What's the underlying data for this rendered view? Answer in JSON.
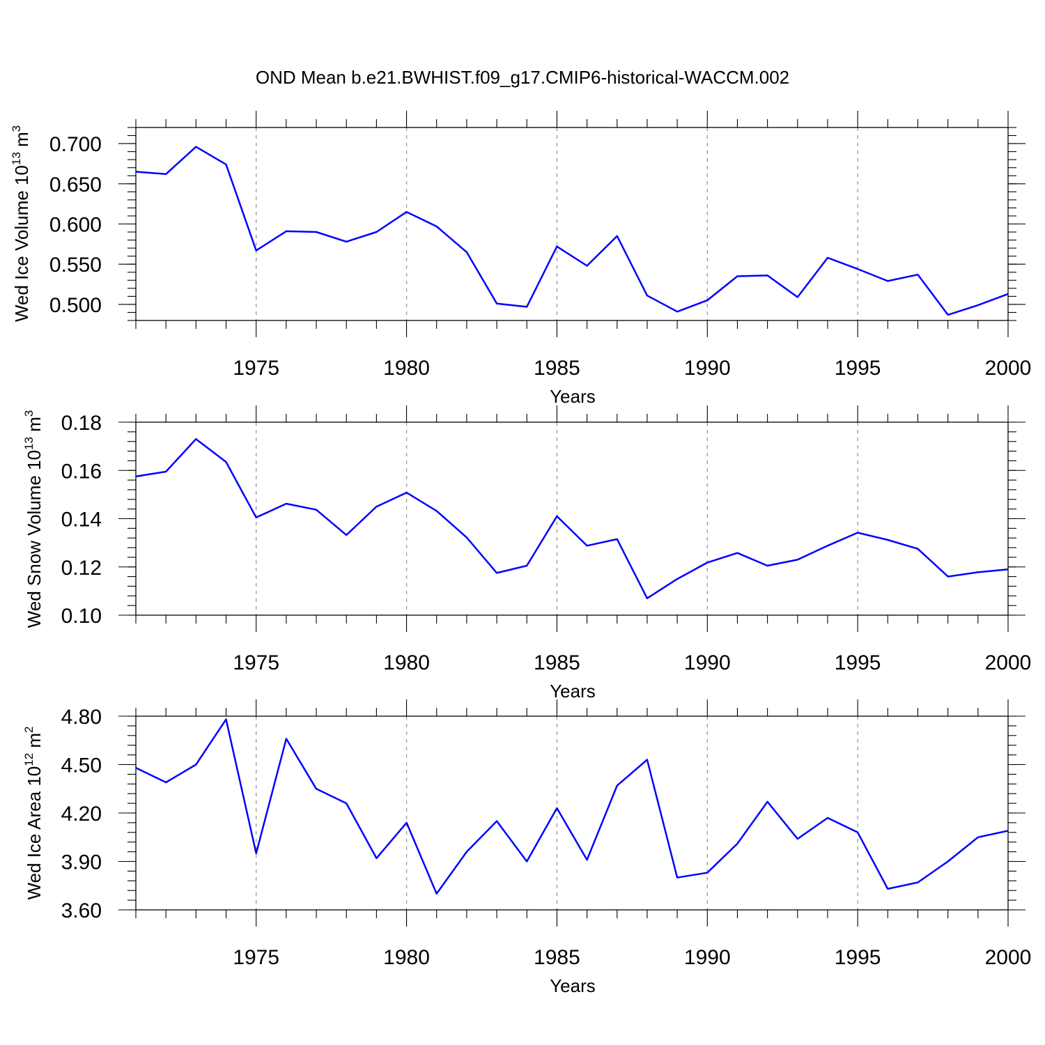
{
  "chart_data": {
    "type": "line",
    "title": "OND Mean b.e21.BWHIST.f09_g17.CMIP6-historical-WACCM.002",
    "x_years": [
      1971,
      1972,
      1973,
      1974,
      1975,
      1976,
      1977,
      1978,
      1979,
      1980,
      1981,
      1982,
      1983,
      1984,
      1985,
      1986,
      1987,
      1988,
      1989,
      1990,
      1991,
      1992,
      1993,
      1994,
      1995,
      1996,
      1997,
      1998,
      1999,
      2000
    ],
    "xlim": [
      1971,
      2000
    ],
    "xticks": [
      1975,
      1980,
      1985,
      1990,
      1995,
      2000
    ],
    "panels": [
      {
        "name": "ice-volume",
        "xlabel": "Years",
        "ylabel_main": "Wed Ice Volume 10",
        "ylabel_exp": "13",
        "ylabel_unit": " m",
        "ylabel_unit_exp": "3",
        "ylim": [
          0.48,
          0.72
        ],
        "yticks": [
          0.5,
          0.55,
          0.6,
          0.65,
          0.7
        ],
        "ytick_labels": [
          "0.500",
          "0.550",
          "0.600",
          "0.650",
          "0.700"
        ],
        "values": [
          0.665,
          0.662,
          0.696,
          0.674,
          0.567,
          0.591,
          0.59,
          0.578,
          0.59,
          0.615,
          0.597,
          0.565,
          0.501,
          0.497,
          0.572,
          0.548,
          0.585,
          0.511,
          0.491,
          0.505,
          0.535,
          0.536,
          0.509,
          0.558,
          0.544,
          0.529,
          0.537,
          0.487,
          0.499,
          0.513
        ]
      },
      {
        "name": "snow-volume",
        "xlabel": "Years",
        "ylabel_main": "Wed Snow Volume 10",
        "ylabel_exp": "13",
        "ylabel_unit": " m",
        "ylabel_unit_exp": "3",
        "ylim": [
          0.1,
          0.18
        ],
        "yticks": [
          0.1,
          0.12,
          0.14,
          0.16,
          0.18
        ],
        "ytick_labels": [
          "0.10",
          "0.12",
          "0.14",
          "0.16",
          "0.18"
        ],
        "values": [
          0.1575,
          0.1595,
          0.173,
          0.1635,
          0.1405,
          0.1462,
          0.1437,
          0.1332,
          0.145,
          0.1508,
          0.1432,
          0.1322,
          0.1175,
          0.1205,
          0.141,
          0.1288,
          0.1315,
          0.107,
          0.115,
          0.1218,
          0.1258,
          0.1205,
          0.123,
          0.1288,
          0.1342,
          0.1312,
          0.1275,
          0.116,
          0.1178,
          0.119
        ]
      },
      {
        "name": "ice-area",
        "xlabel": "Years",
        "ylabel_main": "Wed Ice Area 10",
        "ylabel_exp": "12",
        "ylabel_unit": " m",
        "ylabel_unit_exp": "2",
        "ylim": [
          3.6,
          4.8
        ],
        "yticks": [
          3.6,
          3.9,
          4.2,
          4.5,
          4.8
        ],
        "ytick_labels": [
          "3.60",
          "3.90",
          "4.20",
          "4.50",
          "4.80"
        ],
        "values": [
          4.48,
          4.39,
          4.5,
          4.78,
          3.95,
          4.66,
          4.35,
          4.26,
          3.92,
          4.14,
          3.7,
          3.96,
          4.15,
          3.9,
          4.23,
          3.91,
          4.37,
          4.53,
          3.8,
          3.83,
          4.01,
          4.27,
          4.04,
          4.17,
          4.08,
          3.73,
          3.77,
          3.9,
          4.05,
          4.09
        ]
      }
    ]
  }
}
